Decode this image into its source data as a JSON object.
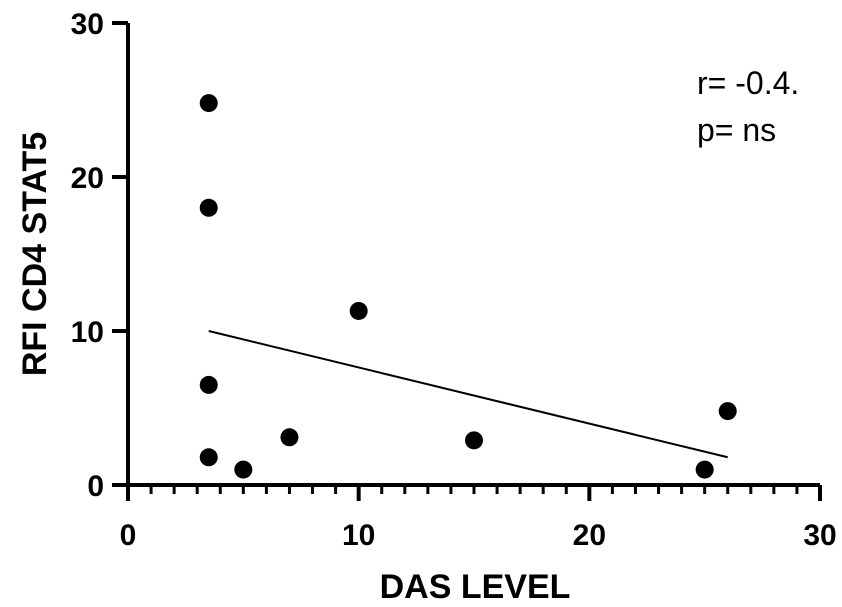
{
  "chart_data": {
    "type": "scatter",
    "title": "",
    "xlabel": "DAS LEVEL",
    "ylabel": "RFI CD4 STAT5",
    "xlim": [
      0,
      30
    ],
    "ylim": [
      0,
      30
    ],
    "xticks": [
      0,
      10,
      20,
      30
    ],
    "yticks": [
      0,
      10,
      20,
      30
    ],
    "x_minor_step": 1,
    "grid": false,
    "legend": "none",
    "points": [
      {
        "x": 3.5,
        "y": 24.8
      },
      {
        "x": 3.5,
        "y": 18.0
      },
      {
        "x": 3.5,
        "y": 6.5
      },
      {
        "x": 3.5,
        "y": 1.8
      },
      {
        "x": 5.0,
        "y": 1.0
      },
      {
        "x": 7.0,
        "y": 3.1
      },
      {
        "x": 10.0,
        "y": 11.3
      },
      {
        "x": 15.0,
        "y": 2.9
      },
      {
        "x": 25.0,
        "y": 1.0
      },
      {
        "x": 26.0,
        "y": 4.8
      }
    ],
    "regression_line": {
      "x1": 3.5,
      "y1": 10.0,
      "x2": 26.0,
      "y2": 1.8
    },
    "annotations": [
      "r= -0.4.",
      "p= ns"
    ],
    "colors": {
      "points": "#000000",
      "line": "#000000",
      "axes": "#000000"
    }
  }
}
